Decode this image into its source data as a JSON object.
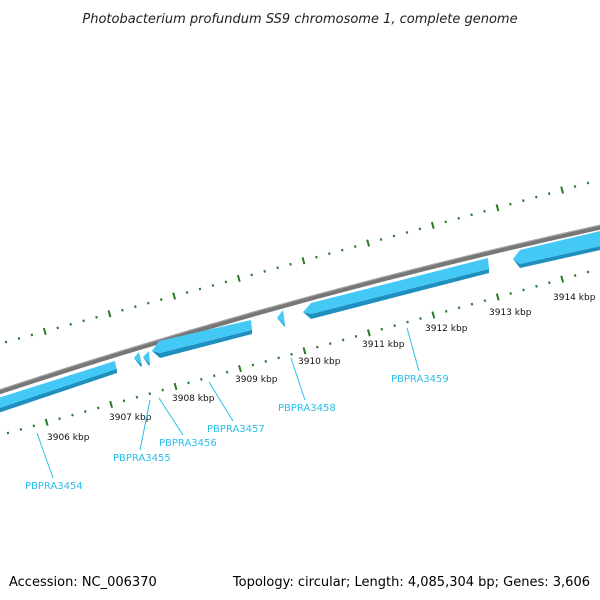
{
  "title": "Photobacterium profundum SS9 chromosome 1, complete genome",
  "footer": {
    "accession": "Accession: NC_006370",
    "summary": "Topology: circular; Length: 4,085,304 bp; Genes: 3,606"
  },
  "ruler_labels": [
    "3906 kbp",
    "3907 kbp",
    "3908 kbp",
    "3909 kbp",
    "3910 kbp",
    "3911 kbp",
    "3912 kbp",
    "3913 kbp",
    "3914 kbp"
  ],
  "genes": [
    {
      "name": "PBPRA3454"
    },
    {
      "name": "PBPRA3455"
    },
    {
      "name": "PBPRA3456"
    },
    {
      "name": "PBPRA3457"
    },
    {
      "name": "PBPRA3458"
    },
    {
      "name": "PBPRA3459"
    }
  ],
  "colors": {
    "backbone": "#777777",
    "gene_fill": "#44c8f5",
    "gene_shade": "#1f8fbf",
    "tick": "#2a7a2a",
    "label": "#29bfea"
  }
}
